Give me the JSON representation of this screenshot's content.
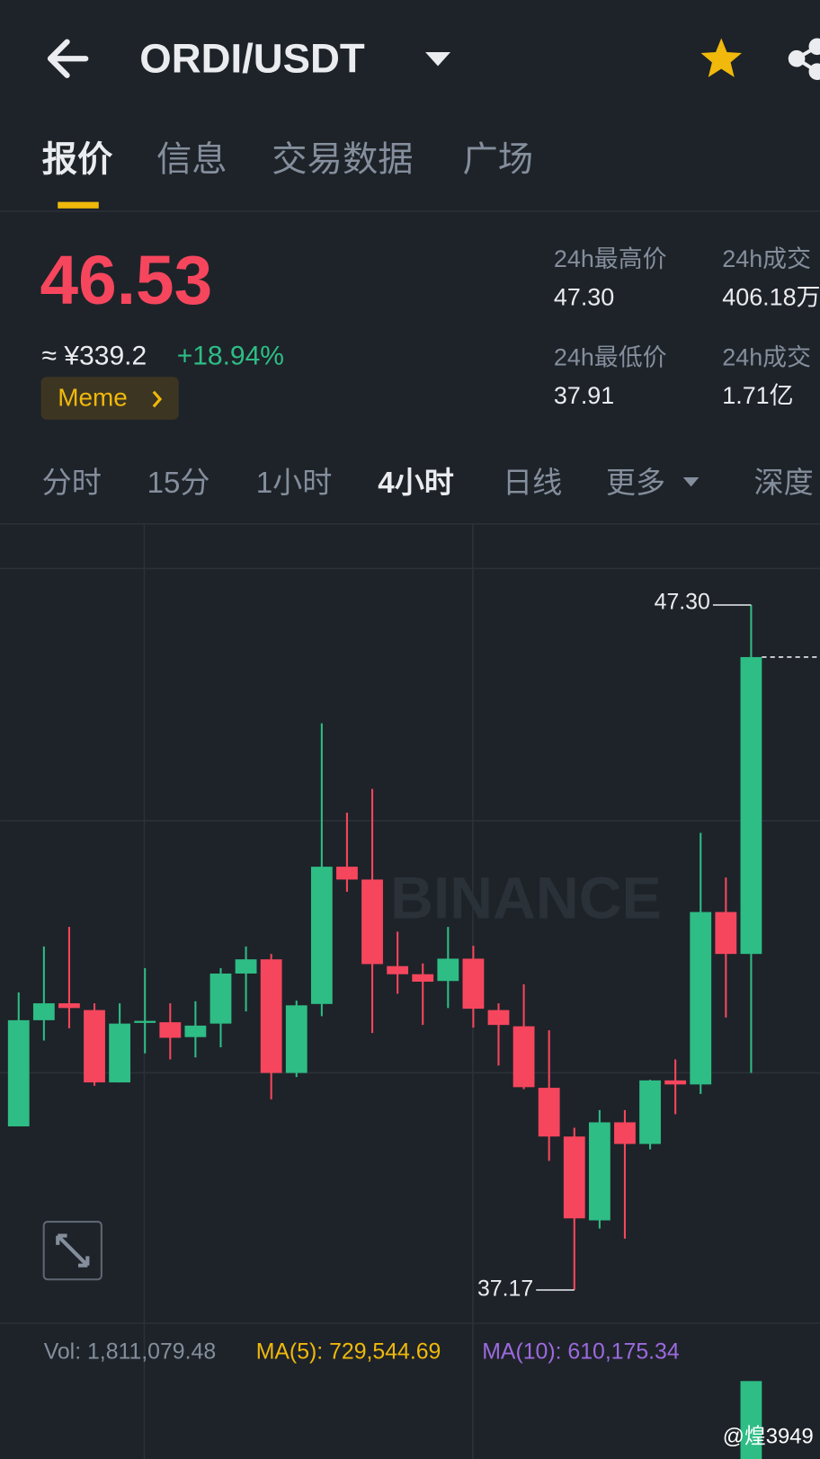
{
  "header": {
    "title": "ORDI/USDT"
  },
  "tabs": [
    "报价",
    "信息",
    "交易数据",
    "广场"
  ],
  "quote": {
    "price": "46.53",
    "cny": "≈ ¥339.2",
    "change": "+18.94%",
    "tag": "Meme"
  },
  "stats": [
    {
      "label": "24h最高价",
      "value": "47.30"
    },
    {
      "label": "24h成交",
      "value": "406.18万"
    },
    {
      "label": "24h最低价",
      "value": "37.91"
    },
    {
      "label": "24h成交",
      "value": "1.71亿"
    }
  ],
  "intervals": [
    "分时",
    "15分",
    "1小时",
    "4小时",
    "日线",
    "更多",
    "深度"
  ],
  "chart_data": {
    "type": "candlestick",
    "open": [
      39.59,
      41.16,
      41.41,
      41.31,
      40.24,
      41.12,
      41.13,
      40.91,
      41.11,
      41.85,
      42.06,
      40.38,
      41.4,
      43.43,
      43.24,
      41.96,
      41.84,
      41.74,
      42.07,
      41.31,
      41.07,
      40.16,
      39.44,
      38.2,
      39.65,
      39.33,
      40.27,
      40.21,
      42.76,
      42.14
    ],
    "high": [
      41.57,
      42.25,
      42.54,
      41.41,
      41.41,
      41.93,
      41.41,
      41.44,
      41.93,
      42.25,
      42.14,
      41.45,
      45.55,
      44.23,
      44.58,
      42.47,
      42.0,
      42.54,
      42.26,
      41.41,
      41.69,
      41.01,
      39.57,
      39.83,
      39.83,
      40.28,
      40.58,
      43.93,
      43.27,
      47.3
    ],
    "low": [
      39.59,
      40.86,
      41.04,
      40.19,
      40.24,
      40.67,
      40.58,
      40.61,
      40.76,
      41.29,
      39.99,
      40.32,
      41.22,
      43.06,
      40.97,
      41.55,
      41.09,
      41.34,
      41.05,
      40.49,
      40.14,
      39.08,
      37.17,
      38.08,
      37.93,
      39.25,
      39.77,
      40.07,
      41.2,
      40.38
    ],
    "close": [
      41.16,
      41.41,
      41.34,
      40.24,
      41.11,
      41.15,
      40.9,
      41.08,
      41.85,
      42.06,
      40.38,
      41.38,
      43.43,
      43.24,
      41.99,
      41.84,
      41.73,
      42.07,
      41.33,
      41.09,
      40.17,
      39.44,
      38.23,
      39.65,
      39.33,
      40.27,
      40.21,
      42.76,
      42.14,
      46.53
    ],
    "up_color": "#2ebd85",
    "down_color": "#f6465d",
    "ylim": [
      36.68,
      48.5
    ],
    "high_marker": {
      "value": 47.3,
      "label": "47.30"
    },
    "low_marker": {
      "value": 37.17,
      "label": "37.17"
    },
    "watermark": "BINANCE",
    "volume": {
      "values": [
        1811079.48
      ],
      "value_labels": [
        "Vol: 1,811,079.48"
      ],
      "ylim": [
        0,
        8000000
      ]
    },
    "ma5": "MA(5): 729,544.69",
    "ma10": "MA(10): 610,175.34"
  },
  "footer": {
    "watermark": "@煌3949"
  }
}
